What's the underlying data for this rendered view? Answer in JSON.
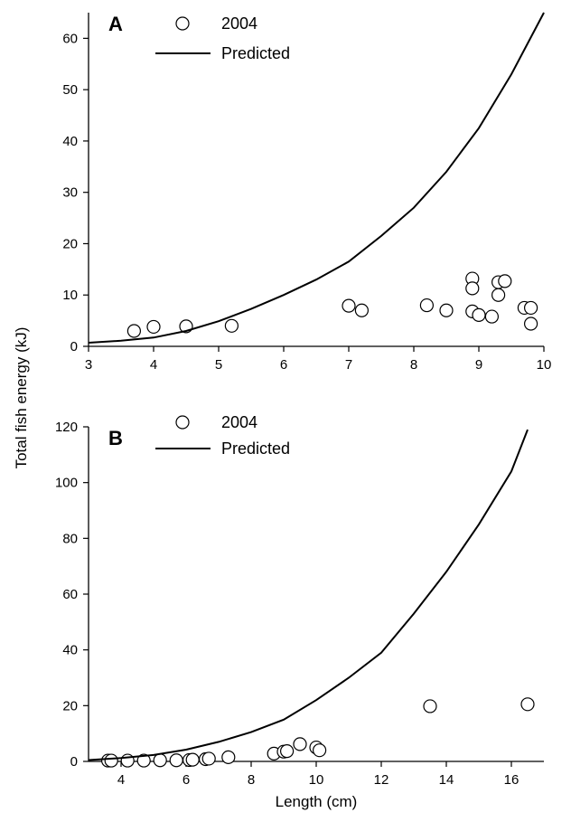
{
  "shared_ylabel": "Total fish energy (kJ)",
  "chart_data": [
    {
      "type": "scatter",
      "panel_label": "A",
      "xlabel": "",
      "ylabel": "Total fish energy (kJ)",
      "xlim": [
        3,
        10
      ],
      "ylim": [
        0,
        65
      ],
      "xticks": [
        3,
        4,
        5,
        6,
        7,
        8,
        9,
        10
      ],
      "yticks": [
        0,
        10,
        20,
        30,
        40,
        50,
        60
      ],
      "legend": {
        "position": "top-left",
        "entries": [
          "2004",
          "Predicted"
        ]
      },
      "series": [
        {
          "name": "2004",
          "marker": "open-circle",
          "points": [
            [
              3.7,
              3.0
            ],
            [
              4.0,
              3.8
            ],
            [
              4.5,
              3.9
            ],
            [
              5.2,
              4.0
            ],
            [
              7.0,
              7.9
            ],
            [
              7.2,
              7.0
            ],
            [
              8.2,
              8.0
            ],
            [
              8.5,
              7.0
            ],
            [
              8.9,
              13.2
            ],
            [
              8.9,
              11.3
            ],
            [
              8.9,
              6.8
            ],
            [
              9.0,
              6.1
            ],
            [
              9.2,
              5.8
            ],
            [
              9.3,
              12.5
            ],
            [
              9.3,
              10.0
            ],
            [
              9.4,
              12.7
            ],
            [
              9.7,
              7.5
            ],
            [
              9.8,
              7.5
            ],
            [
              9.8,
              4.4
            ]
          ]
        },
        {
          "name": "Predicted",
          "style": "line",
          "points": [
            [
              3.0,
              0.7
            ],
            [
              3.5,
              1.1
            ],
            [
              4.0,
              1.7
            ],
            [
              4.5,
              3.0
            ],
            [
              5.0,
              4.9
            ],
            [
              5.5,
              7.3
            ],
            [
              6.0,
              10.0
            ],
            [
              6.5,
              13.0
            ],
            [
              7.0,
              16.5
            ],
            [
              7.5,
              21.5
            ],
            [
              8.0,
              27.0
            ],
            [
              8.5,
              34.0
            ],
            [
              9.0,
              42.5
            ],
            [
              9.5,
              53.0
            ],
            [
              10.0,
              65.0
            ]
          ]
        }
      ]
    },
    {
      "type": "scatter",
      "panel_label": "B",
      "xlabel": "Length (cm)",
      "ylabel": "Total fish energy (kJ)",
      "xlim": [
        3,
        17
      ],
      "ylim": [
        0,
        120
      ],
      "xticks": [
        4,
        6,
        8,
        10,
        12,
        14,
        16
      ],
      "yticks": [
        0,
        20,
        40,
        60,
        80,
        100,
        120
      ],
      "legend": {
        "position": "top-left",
        "entries": [
          "2004",
          "Predicted"
        ]
      },
      "series": [
        {
          "name": "2004",
          "marker": "open-circle",
          "points": [
            [
              3.6,
              0.3
            ],
            [
              3.7,
              0.3
            ],
            [
              4.2,
              0.3
            ],
            [
              4.7,
              0.3
            ],
            [
              5.2,
              0.4
            ],
            [
              5.7,
              0.4
            ],
            [
              6.1,
              0.5
            ],
            [
              6.2,
              0.6
            ],
            [
              6.6,
              0.8
            ],
            [
              6.7,
              1.0
            ],
            [
              7.3,
              1.5
            ],
            [
              8.7,
              2.8
            ],
            [
              9.0,
              3.5
            ],
            [
              9.1,
              3.7
            ],
            [
              9.5,
              6.2
            ],
            [
              10.0,
              5.0
            ],
            [
              10.1,
              4.0
            ],
            [
              13.5,
              19.8
            ],
            [
              16.5,
              20.5
            ]
          ]
        },
        {
          "name": "Predicted",
          "style": "line",
          "points": [
            [
              3.0,
              0.5
            ],
            [
              4.0,
              1.2
            ],
            [
              5.0,
              2.3
            ],
            [
              6.0,
              4.2
            ],
            [
              7.0,
              7.0
            ],
            [
              8.0,
              10.5
            ],
            [
              9.0,
              15.0
            ],
            [
              10.0,
              22.0
            ],
            [
              11.0,
              30.0
            ],
            [
              12.0,
              39.0
            ],
            [
              13.0,
              53.0
            ],
            [
              14.0,
              68.0
            ],
            [
              15.0,
              85.0
            ],
            [
              16.0,
              104.0
            ],
            [
              16.5,
              119.0
            ]
          ]
        }
      ]
    }
  ]
}
